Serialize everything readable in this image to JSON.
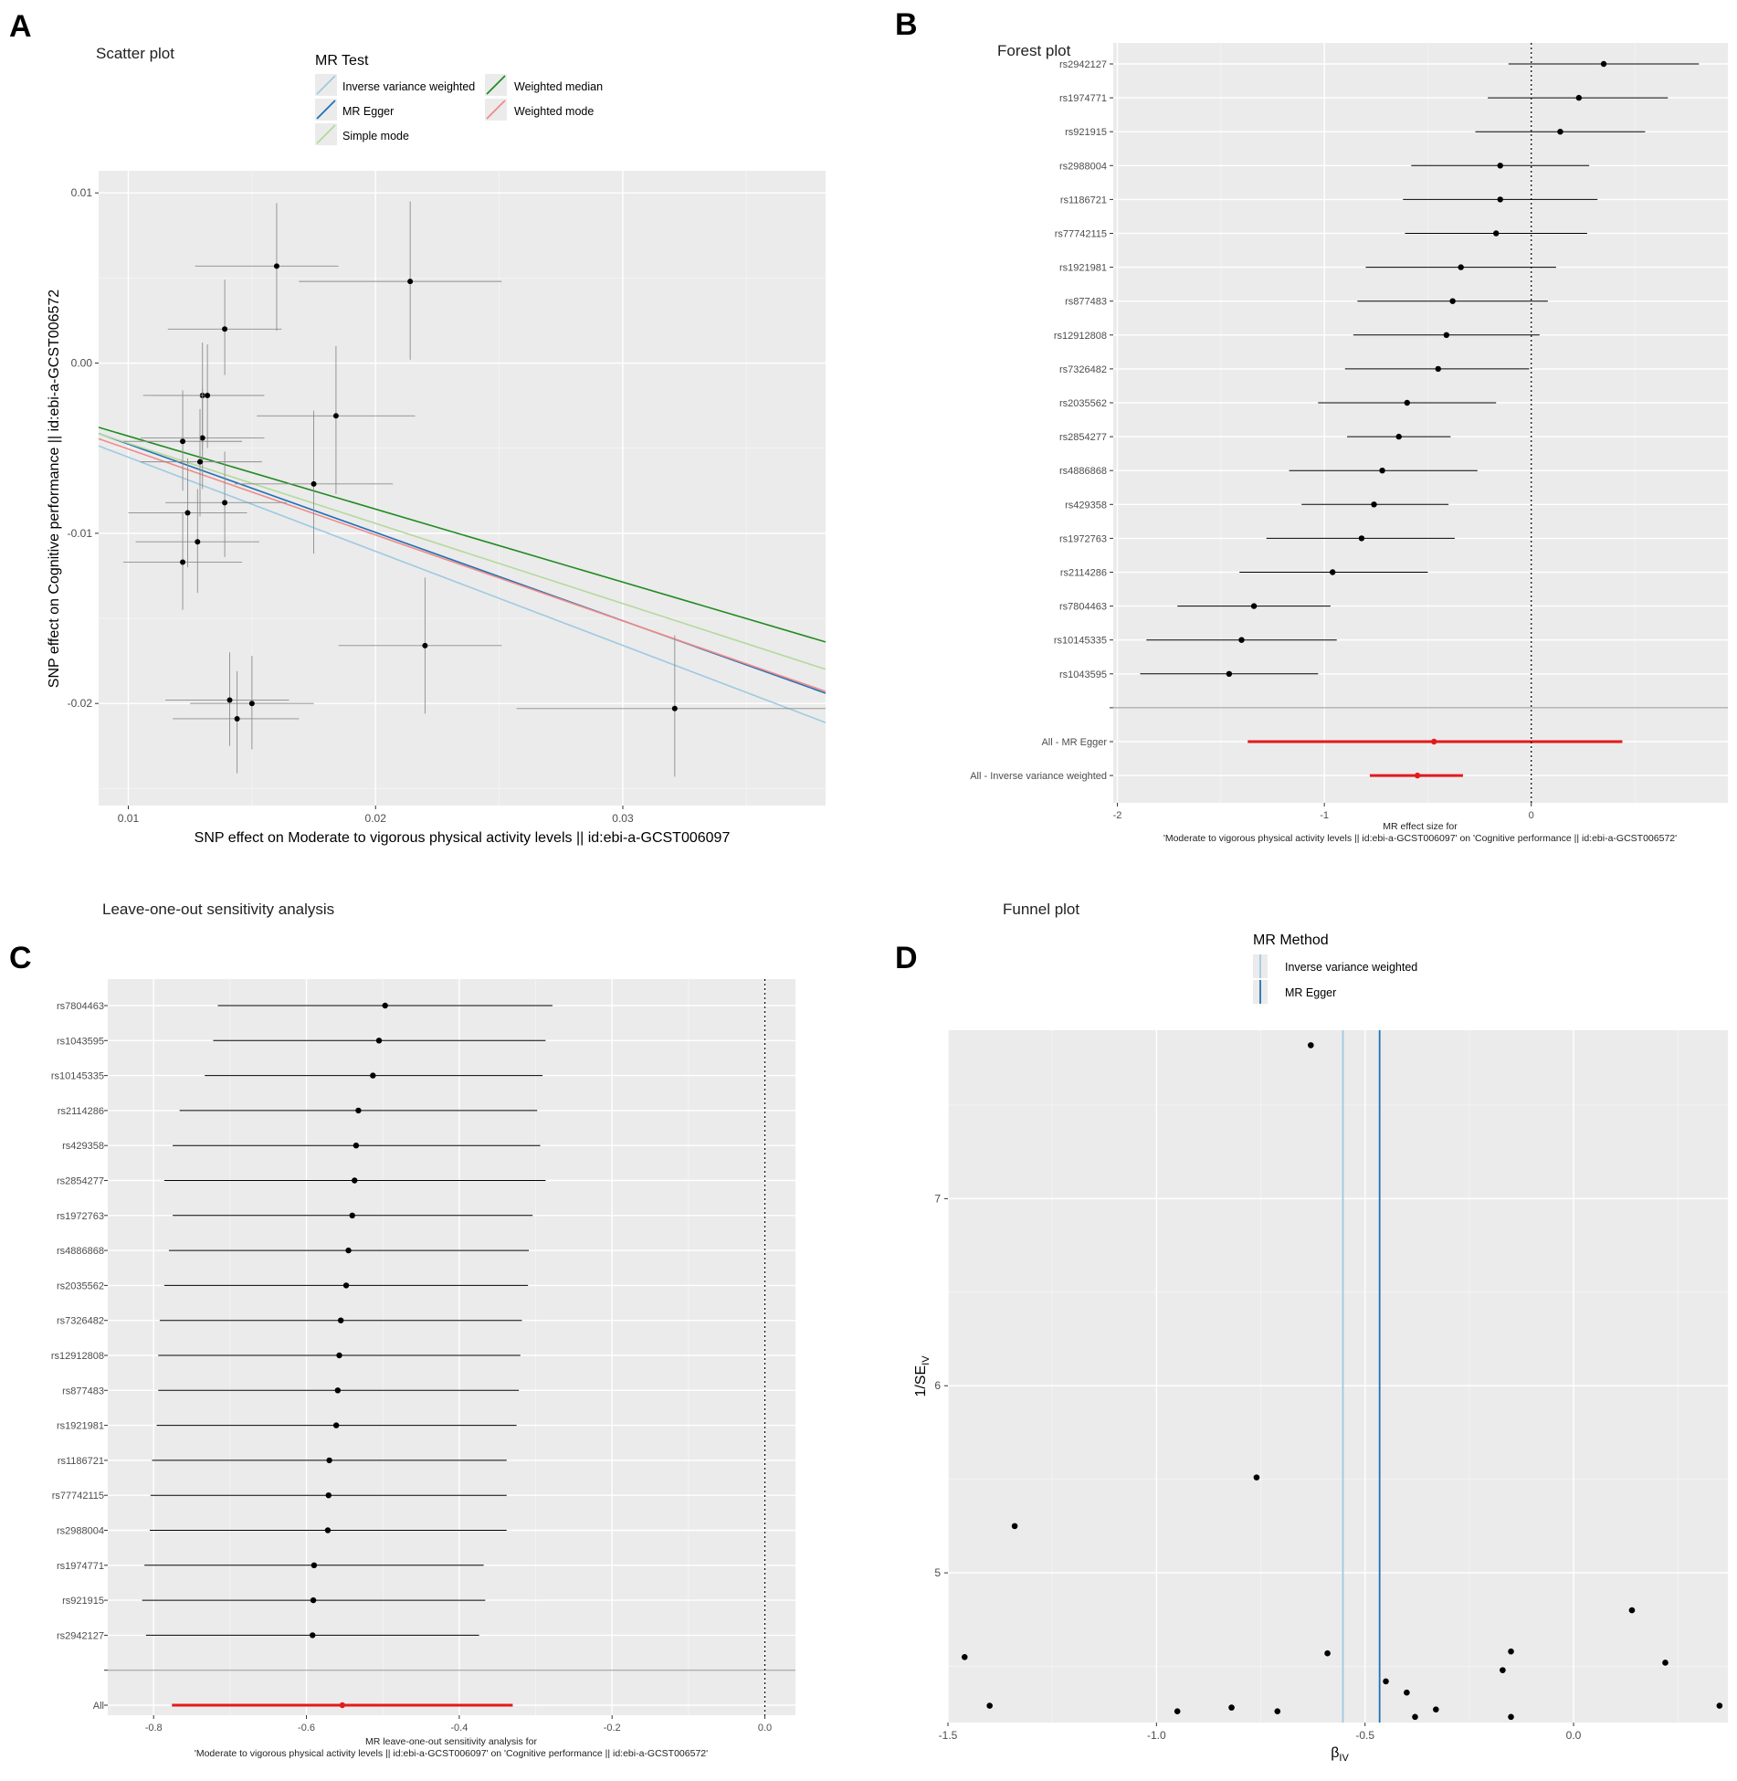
{
  "panels": {
    "A": {
      "label": "A",
      "chart_data": {
        "type": "scatter",
        "title": "Scatter plot",
        "xlabel": "SNP effect on Moderate to vigorous physical activity levels || id:ebi-a-GCST006097",
        "ylabel": "SNP effect on Cognitive performance || id:ebi-a-GCST006572",
        "xlim": [
          0.0088,
          0.0382
        ],
        "ylim": [
          -0.026,
          0.0113
        ],
        "xticks": [
          0.01,
          0.02,
          0.03
        ],
        "xtick_labels": [
          "0.01",
          "0.02",
          "0.03"
        ],
        "yticks": [
          0.01,
          0.0,
          -0.01,
          -0.02
        ],
        "ytick_labels": [
          "0.01",
          "0.00",
          "-0.01",
          "-0.02"
        ],
        "legend": {
          "title": "MR Test",
          "placement": "top",
          "entries": [
            {
              "name": "Inverse variance weighted",
              "color": "#9ecae1"
            },
            {
              "name": "MR Egger",
              "color": "#2171b5"
            },
            {
              "name": "Simple mode",
              "color": "#b5d99c"
            },
            {
              "name": "Weighted median",
              "color": "#238b22"
            },
            {
              "name": "Weighted mode",
              "color": "#f08a8a"
            }
          ]
        },
        "lines": [
          {
            "name": "Inverse variance weighted",
            "color": "#9ecae1",
            "intercept": 0.0,
            "slope": -0.553
          },
          {
            "name": "MR Egger",
            "color": "#2171b5",
            "intercept": 0.00043,
            "slope": -0.519
          },
          {
            "name": "Simple mode",
            "color": "#b5d99c",
            "intercept": 0.0,
            "slope": -0.471
          },
          {
            "name": "Weighted median",
            "color": "#238b22",
            "intercept": 0.0,
            "slope": -0.429
          },
          {
            "name": "Weighted mode",
            "color": "#f08a8a",
            "intercept": 0.0,
            "slope": -0.505
          }
        ],
        "points": [
          {
            "x": 0.016,
            "y": 0.0057,
            "x_lo": 0.0127,
            "x_hi": 0.0185,
            "y_lo": 0.0019,
            "y_hi": 0.0094
          },
          {
            "x": 0.0214,
            "y": 0.0048,
            "x_lo": 0.0169,
            "x_hi": 0.0251,
            "y_lo": 0.0002,
            "y_hi": 0.0095
          },
          {
            "x": 0.0139,
            "y": 0.002,
            "x_lo": 0.0116,
            "x_hi": 0.0162,
            "y_lo": -0.0007,
            "y_hi": 0.0049
          },
          {
            "x": 0.013,
            "y": -0.0019,
            "x_lo": 0.0106,
            "x_hi": 0.0155,
            "y_lo": -0.0051,
            "y_hi": 0.0012
          },
          {
            "x": 0.0132,
            "y": -0.0019,
            "x_lo": 0.011,
            "x_hi": 0.0155,
            "y_lo": -0.005,
            "y_hi": 0.0011
          },
          {
            "x": 0.0184,
            "y": -0.0031,
            "x_lo": 0.0152,
            "x_hi": 0.0216,
            "y_lo": -0.0077,
            "y_hi": 0.001
          },
          {
            "x": 0.0122,
            "y": -0.0046,
            "x_lo": 0.0098,
            "x_hi": 0.0146,
            "y_lo": -0.0075,
            "y_hi": -0.0016
          },
          {
            "x": 0.013,
            "y": -0.0044,
            "x_lo": 0.0105,
            "x_hi": 0.0155,
            "y_lo": -0.0074,
            "y_hi": -0.0015
          },
          {
            "x": 0.0129,
            "y": -0.0058,
            "x_lo": 0.0105,
            "x_hi": 0.0154,
            "y_lo": -0.009,
            "y_hi": -0.0027
          },
          {
            "x": 0.0175,
            "y": -0.0071,
            "x_lo": 0.0143,
            "x_hi": 0.0207,
            "y_lo": -0.0112,
            "y_hi": -0.0028
          },
          {
            "x": 0.0139,
            "y": -0.0082,
            "x_lo": 0.0115,
            "x_hi": 0.0164,
            "y_lo": -0.0114,
            "y_hi": -0.0052
          },
          {
            "x": 0.0124,
            "y": -0.0088,
            "x_lo": 0.01,
            "x_hi": 0.0148,
            "y_lo": -0.012,
            "y_hi": -0.0056
          },
          {
            "x": 0.0128,
            "y": -0.0105,
            "x_lo": 0.0103,
            "x_hi": 0.0153,
            "y_lo": -0.0135,
            "y_hi": -0.0074
          },
          {
            "x": 0.0122,
            "y": -0.0117,
            "x_lo": 0.0098,
            "x_hi": 0.0146,
            "y_lo": -0.0145,
            "y_hi": -0.0088
          },
          {
            "x": 0.022,
            "y": -0.0166,
            "x_lo": 0.0185,
            "x_hi": 0.0251,
            "y_lo": -0.0206,
            "y_hi": -0.0126
          },
          {
            "x": 0.0141,
            "y": -0.0198,
            "x_lo": 0.0115,
            "x_hi": 0.0165,
            "y_lo": -0.0225,
            "y_hi": -0.017
          },
          {
            "x": 0.015,
            "y": -0.02,
            "x_lo": 0.0125,
            "x_hi": 0.0175,
            "y_lo": -0.0227,
            "y_hi": -0.0172
          },
          {
            "x": 0.0144,
            "y": -0.0209,
            "x_lo": 0.0118,
            "x_hi": 0.0169,
            "y_lo": -0.0241,
            "y_hi": -0.0181
          },
          {
            "x": 0.0321,
            "y": -0.0203,
            "x_lo": 0.0257,
            "x_hi": 0.0382,
            "y_lo": -0.0243,
            "y_hi": -0.016
          }
        ]
      }
    },
    "B": {
      "label": "B",
      "chart_data": {
        "type": "forest",
        "title": "Forest plot",
        "xlabel_line1": "MR effect size for",
        "xlabel_line2": "'Moderate to vigorous physical activity levels || id:ebi-a-GCST006097' on 'Cognitive performance || id:ebi-a-GCST006572'",
        "xlim": [
          -2.02,
          0.95
        ],
        "xticks": [
          -2,
          -1,
          0
        ],
        "xtick_labels": [
          "-2",
          "-1",
          "0"
        ],
        "reference_line": 0,
        "snps": [
          {
            "label": "rs2942127",
            "est": 0.35,
            "lo": -0.11,
            "hi": 0.81
          },
          {
            "label": "rs1974771",
            "est": 0.23,
            "lo": -0.21,
            "hi": 0.66
          },
          {
            "label": "rs921915",
            "est": 0.14,
            "lo": -0.27,
            "hi": 0.55
          },
          {
            "label": "rs2988004",
            "est": -0.15,
            "lo": -0.58,
            "hi": 0.28
          },
          {
            "label": "rs1186721",
            "est": -0.15,
            "lo": -0.62,
            "hi": 0.32
          },
          {
            "label": "rs77742115",
            "est": -0.17,
            "lo": -0.61,
            "hi": 0.27
          },
          {
            "label": "rs1921981",
            "est": -0.34,
            "lo": -0.8,
            "hi": 0.12
          },
          {
            "label": "rs877483",
            "est": -0.38,
            "lo": -0.84,
            "hi": 0.08
          },
          {
            "label": "rs12912808",
            "est": -0.41,
            "lo": -0.86,
            "hi": 0.04
          },
          {
            "label": "rs7326482",
            "est": -0.45,
            "lo": -0.9,
            "hi": -0.01
          },
          {
            "label": "rs2035562",
            "est": -0.6,
            "lo": -1.03,
            "hi": -0.17
          },
          {
            "label": "rs2854277",
            "est": -0.64,
            "lo": -0.89,
            "hi": -0.39
          },
          {
            "label": "rs4886868",
            "est": -0.72,
            "lo": -1.17,
            "hi": -0.26
          },
          {
            "label": "rs429358",
            "est": -0.76,
            "lo": -1.11,
            "hi": -0.4
          },
          {
            "label": "rs1972763",
            "est": -0.82,
            "lo": -1.28,
            "hi": -0.37
          },
          {
            "label": "rs2114286",
            "est": -0.96,
            "lo": -1.41,
            "hi": -0.5
          },
          {
            "label": "rs7804463",
            "est": -1.34,
            "lo": -1.71,
            "hi": -0.97
          },
          {
            "label": "rs10145335",
            "est": -1.4,
            "lo": -1.86,
            "hi": -0.94
          },
          {
            "label": "rs1043595",
            "est": -1.46,
            "lo": -1.89,
            "hi": -1.03
          }
        ],
        "summary": [
          {
            "label": "All - MR Egger",
            "est": -0.47,
            "lo": -1.37,
            "hi": 0.44
          },
          {
            "label": "All - Inverse variance weighted",
            "est": -0.55,
            "lo": -0.78,
            "hi": -0.33
          }
        ],
        "summary_color": "#e31a1c"
      }
    },
    "C": {
      "label": "C",
      "chart_data": {
        "type": "forest",
        "title": "Leave-one-out sensitivity analysis",
        "xlabel_line1": "MR leave-one-out sensitivity analysis for",
        "xlabel_line2": "'Moderate to vigorous physical activity levels || id:ebi-a-GCST006097' on 'Cognitive performance || id:ebi-a-GCST006572'",
        "xlim": [
          -0.86,
          0.04
        ],
        "xticks": [
          -0.8,
          -0.6,
          -0.4,
          -0.2,
          0.0
        ],
        "xtick_labels": [
          "-0.8",
          "-0.6",
          "-0.4",
          "-0.2",
          "0.0"
        ],
        "reference_line": 0,
        "snps": [
          {
            "label": "rs7804463",
            "est": -0.497,
            "lo": -0.716,
            "hi": -0.278
          },
          {
            "label": "rs1043595",
            "est": -0.505,
            "lo": -0.722,
            "hi": -0.287
          },
          {
            "label": "rs10145335",
            "est": -0.513,
            "lo": -0.733,
            "hi": -0.291
          },
          {
            "label": "rs2114286",
            "est": -0.532,
            "lo": -0.766,
            "hi": -0.298
          },
          {
            "label": "rs429358",
            "est": -0.535,
            "lo": -0.775,
            "hi": -0.294
          },
          {
            "label": "rs2854277",
            "est": -0.537,
            "lo": -0.786,
            "hi": -0.287
          },
          {
            "label": "rs1972763",
            "est": -0.54,
            "lo": -0.775,
            "hi": -0.304
          },
          {
            "label": "rs4886868",
            "est": -0.545,
            "lo": -0.78,
            "hi": -0.309
          },
          {
            "label": "rs2035562",
            "est": -0.548,
            "lo": -0.786,
            "hi": -0.31
          },
          {
            "label": "rs7326482",
            "est": -0.555,
            "lo": -0.792,
            "hi": -0.318
          },
          {
            "label": "rs12912808",
            "est": -0.557,
            "lo": -0.794,
            "hi": -0.32
          },
          {
            "label": "rs877483",
            "est": -0.559,
            "lo": -0.794,
            "hi": -0.322
          },
          {
            "label": "rs1921981",
            "est": -0.561,
            "lo": -0.796,
            "hi": -0.325
          },
          {
            "label": "rs1186721",
            "est": -0.57,
            "lo": -0.802,
            "hi": -0.338
          },
          {
            "label": "rs77742115",
            "est": -0.571,
            "lo": -0.804,
            "hi": -0.338
          },
          {
            "label": "rs2988004",
            "est": -0.572,
            "lo": -0.805,
            "hi": -0.338
          },
          {
            "label": "rs1974771",
            "est": -0.59,
            "lo": -0.812,
            "hi": -0.368
          },
          {
            "label": "rs921915",
            "est": -0.591,
            "lo": -0.815,
            "hi": -0.366
          },
          {
            "label": "rs2942127",
            "est": -0.592,
            "lo": -0.81,
            "hi": -0.374
          }
        ],
        "summary": [
          {
            "label": "All",
            "est": -0.553,
            "lo": -0.776,
            "hi": -0.33
          }
        ],
        "summary_color": "#e31a1c"
      }
    },
    "D": {
      "label": "D",
      "chart_data": {
        "type": "funnel",
        "title": "Funnel plot",
        "xlim": [
          -1.5,
          0.37
        ],
        "ylim": [
          4.2,
          7.9
        ],
        "xticks": [
          -1.5,
          -1.0,
          -0.5,
          0.0
        ],
        "xtick_labels": [
          "-1.5",
          "-1.0",
          "-0.5",
          "0.0"
        ],
        "yticks": [
          5,
          6,
          7
        ],
        "ytick_labels": [
          "5",
          "6",
          "7"
        ],
        "xlabel_main": "β",
        "xlabel_sub": "IV",
        "ylabel_main": "1/SE",
        "ylabel_sub": "IV",
        "legend": {
          "title": "MR Method",
          "placement": "top",
          "entries": [
            {
              "name": "Inverse variance weighted",
              "color": "#9ecae1"
            },
            {
              "name": "MR Egger",
              "color": "#2171b5"
            }
          ]
        },
        "vlines": [
          {
            "name": "Inverse variance weighted",
            "x": -0.553,
            "color": "#9ecae1"
          },
          {
            "name": "MR Egger",
            "x": -0.465,
            "color": "#2171b5"
          }
        ],
        "points": [
          {
            "x": -0.63,
            "y": 7.82
          },
          {
            "x": -0.76,
            "y": 5.51
          },
          {
            "x": -1.34,
            "y": 5.25
          },
          {
            "x": 0.14,
            "y": 4.8
          },
          {
            "x": -0.59,
            "y": 4.57
          },
          {
            "x": -1.46,
            "y": 4.55
          },
          {
            "x": -0.15,
            "y": 4.58
          },
          {
            "x": 0.22,
            "y": 4.52
          },
          {
            "x": -0.17,
            "y": 4.48
          },
          {
            "x": -0.45,
            "y": 4.42
          },
          {
            "x": -0.4,
            "y": 4.36
          },
          {
            "x": -1.4,
            "y": 4.29
          },
          {
            "x": -0.82,
            "y": 4.28
          },
          {
            "x": -0.95,
            "y": 4.26
          },
          {
            "x": -0.71,
            "y": 4.26
          },
          {
            "x": -0.33,
            "y": 4.27
          },
          {
            "x": -0.38,
            "y": 4.23
          },
          {
            "x": -0.15,
            "y": 4.23
          },
          {
            "x": 0.35,
            "y": 4.29
          }
        ]
      }
    }
  }
}
